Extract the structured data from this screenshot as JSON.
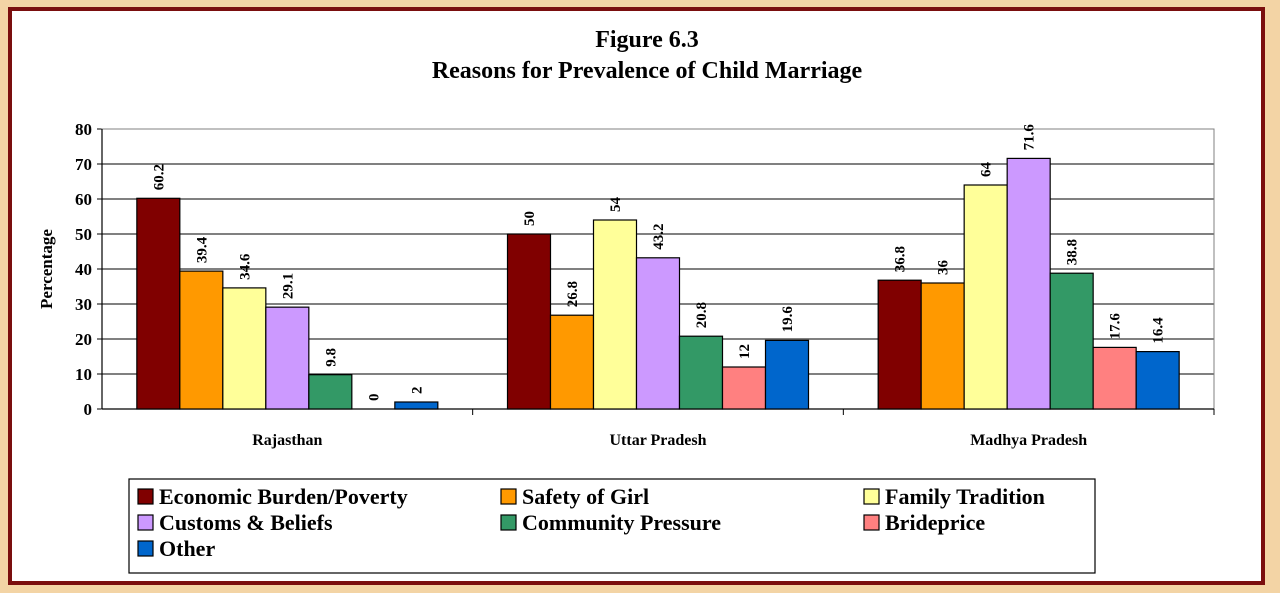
{
  "chart_data": {
    "type": "bar",
    "title": [
      "Figure 6.3",
      "Reasons for Prevalence of Child Marriage"
    ],
    "xlabel": "",
    "ylabel": "Percentage",
    "ylim": [
      0,
      80
    ],
    "yticks": [
      0,
      10,
      20,
      30,
      40,
      50,
      60,
      70,
      80
    ],
    "grid": true,
    "legend_position": "bottom",
    "categories": [
      "Rajasthan",
      "Uttar Pradesh",
      "Madhya Pradesh"
    ],
    "series": [
      {
        "name": "Economic Burden/Poverty",
        "color": "#800000",
        "values": [
          60.2,
          50,
          36.8
        ]
      },
      {
        "name": "Safety of Girl",
        "color": "#ff9900",
        "values": [
          39.4,
          26.8,
          36
        ]
      },
      {
        "name": "Family Tradition",
        "color": "#ffff99",
        "values": [
          34.6,
          54,
          64
        ]
      },
      {
        "name": "Customs & Beliefs",
        "color": "#cc99ff",
        "values": [
          29.1,
          43.2,
          71.6
        ]
      },
      {
        "name": "Community Pressure",
        "color": "#339966",
        "values": [
          9.8,
          20.8,
          38.8
        ]
      },
      {
        "name": "Brideprice",
        "color": "#ff8080",
        "values": [
          0,
          12,
          17.6
        ]
      },
      {
        "name": "Other",
        "color": "#0066cc",
        "values": [
          2,
          19.6,
          16.4
        ]
      }
    ]
  }
}
